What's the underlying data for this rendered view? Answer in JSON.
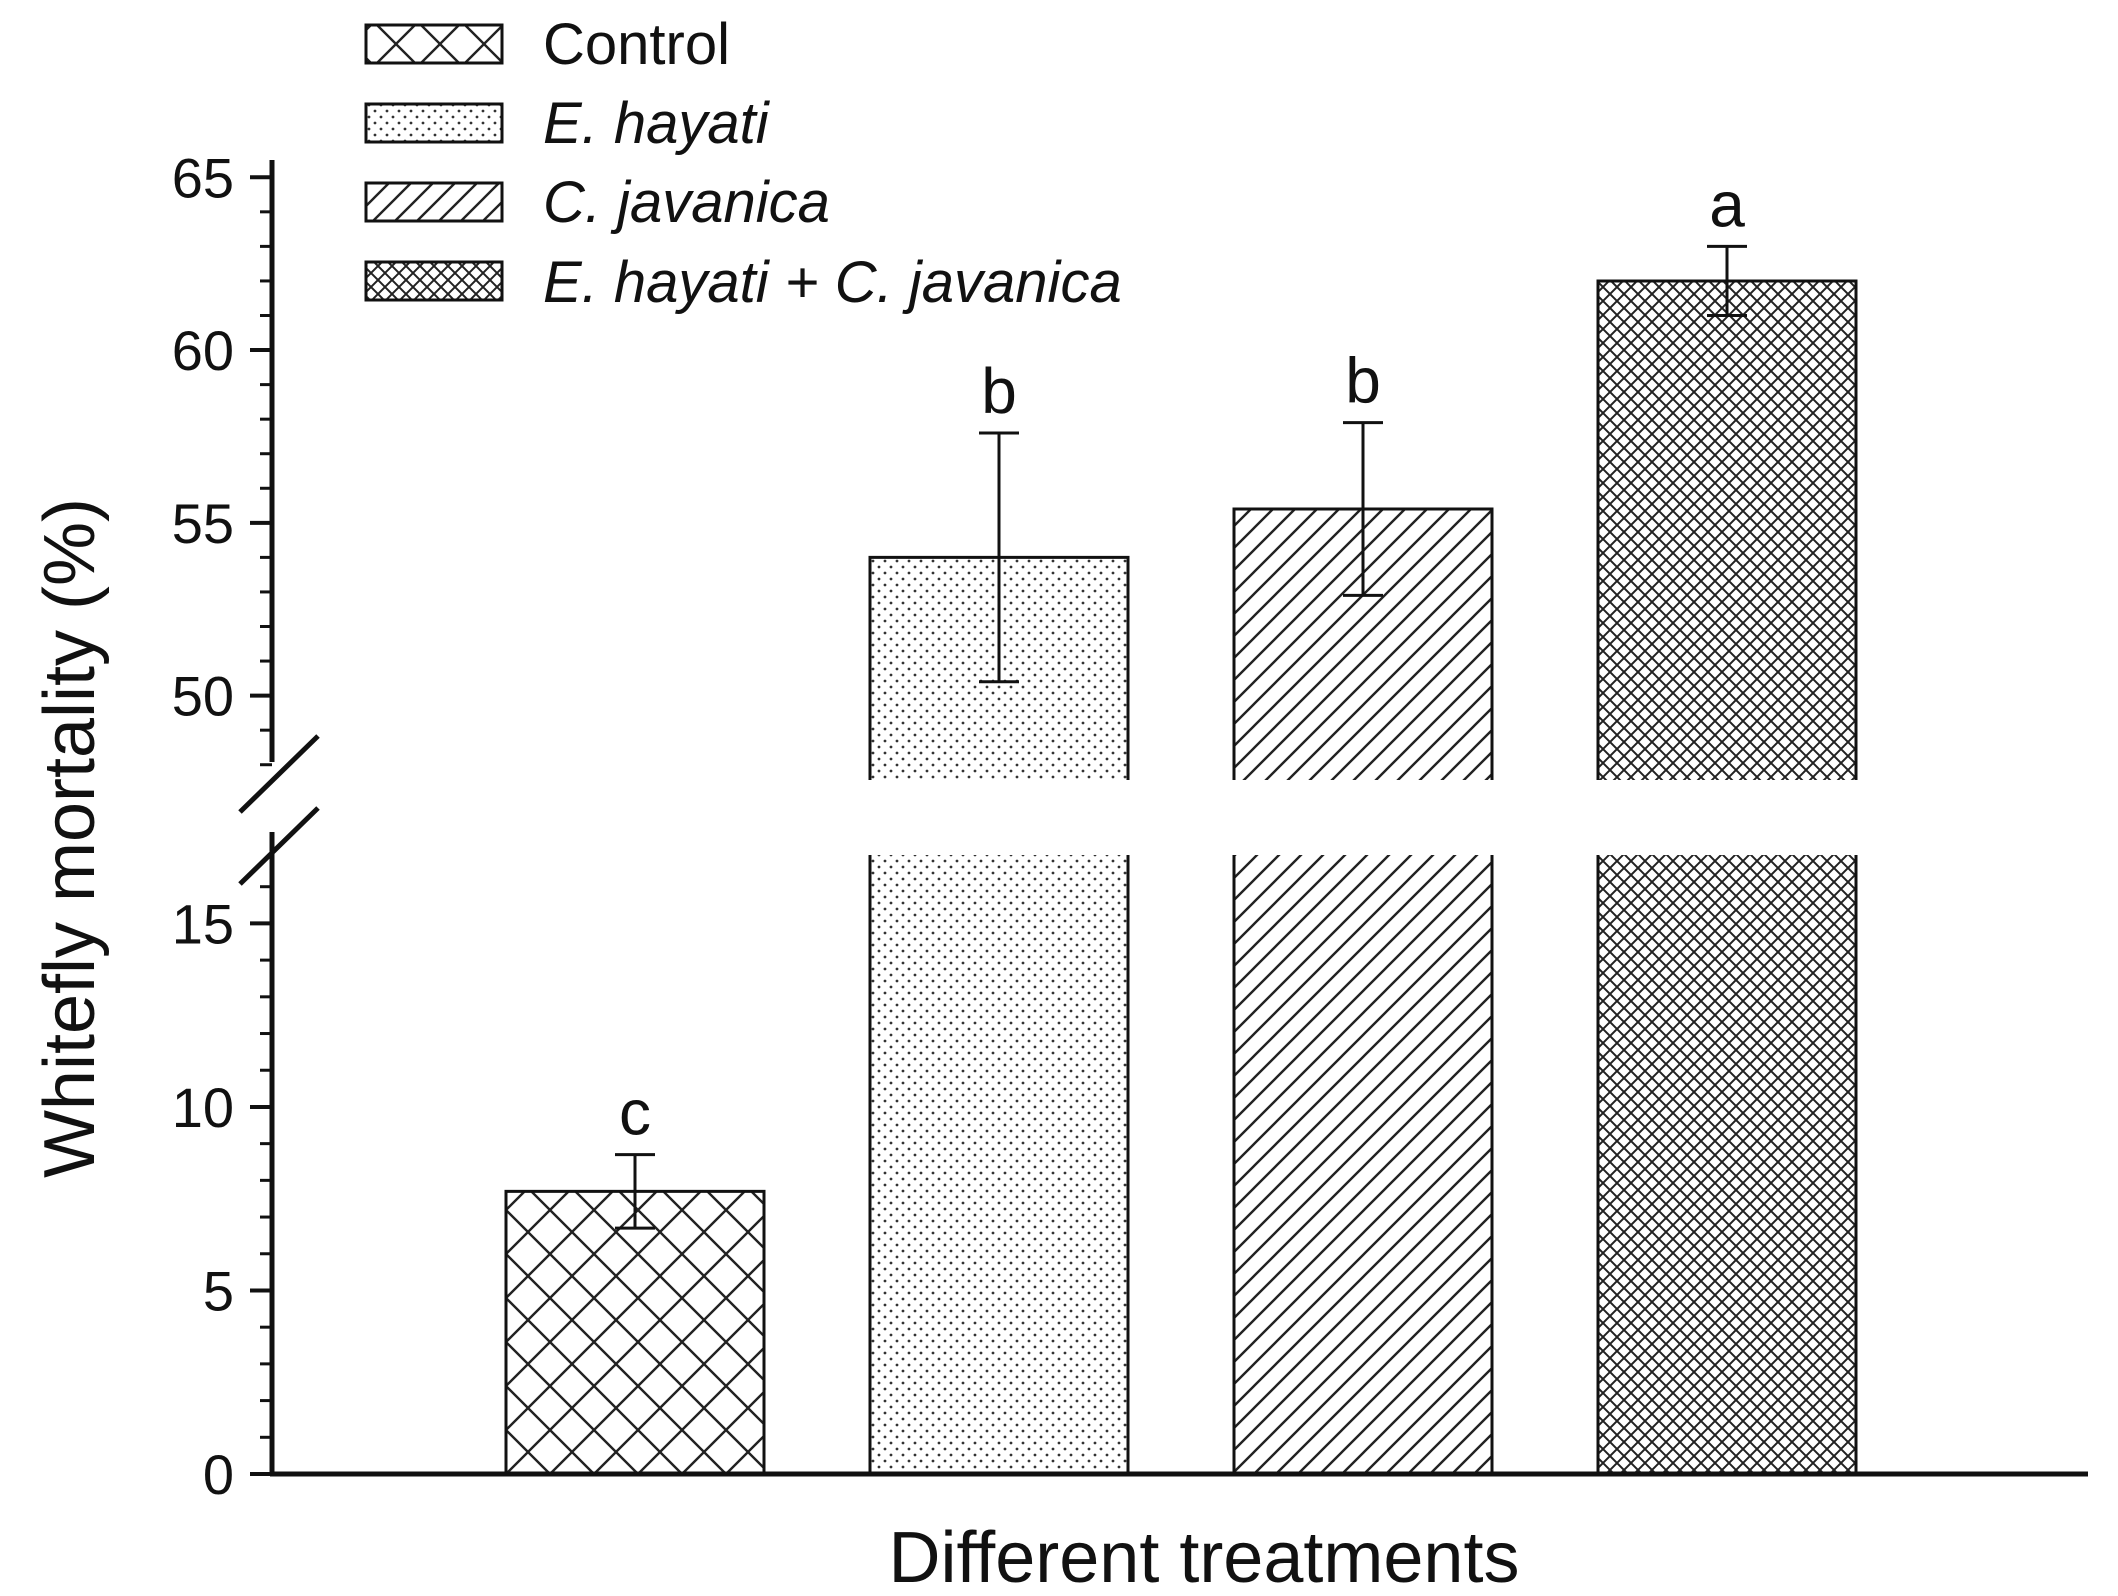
{
  "chart_data": {
    "type": "bar",
    "title": "",
    "xlabel": "Different treatments",
    "ylabel": "Whitefly mortality (%)",
    "axis_break": {
      "lower_range": [
        0,
        17
      ],
      "upper_range": [
        47.5,
        65.5
      ]
    },
    "lower_ticks": [
      0,
      5,
      10,
      15
    ],
    "upper_ticks": [
      50,
      55,
      60,
      65
    ],
    "tick_labels": {
      "t0": "0",
      "t5": "5",
      "t10": "10",
      "t15": "15",
      "t50": "50",
      "t55": "55",
      "t60": "60",
      "t65": "65"
    },
    "categories": [
      "Control",
      "E. hayati",
      "C. javanica",
      "E. hayati + C. javanica"
    ],
    "series": [
      {
        "name": "Whitefly mortality (%)",
        "values": [
          7.7,
          54.0,
          55.4,
          62.0
        ],
        "errors": [
          1.0,
          3.6,
          2.5,
          1.0
        ],
        "significance": [
          "c",
          "b",
          "b",
          "a"
        ],
        "patterns": [
          "crosshatch",
          "dots",
          "diagonal",
          "fine-crosshatch"
        ]
      }
    ],
    "legend": {
      "position": "top-left",
      "entries": [
        "Control",
        "E. hayati",
        "C. javanica",
        "E. hayati + C. javanica"
      ]
    }
  }
}
